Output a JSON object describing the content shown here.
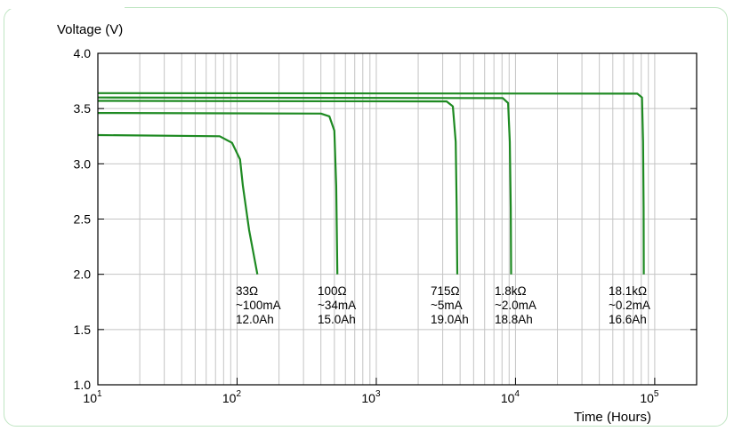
{
  "chart_data": {
    "type": "line",
    "xscale": "log",
    "xlim": [
      10,
      200000
    ],
    "ylim": [
      1.0,
      4.0
    ],
    "xlabel": "Time (Hours)",
    "ylabel": "Voltage (V)",
    "yticks": [
      "1.0",
      "1.5",
      "2.0",
      "2.5",
      "3.0",
      "3.5",
      "4.0"
    ],
    "xticks": [
      {
        "value": 10,
        "base": "10",
        "exp": "1"
      },
      {
        "value": 100,
        "base": "10",
        "exp": "2"
      },
      {
        "value": 1000,
        "base": "10",
        "exp": "3"
      },
      {
        "value": 10000,
        "base": "10",
        "exp": "4"
      },
      {
        "value": 100000,
        "base": "10",
        "exp": "5"
      }
    ],
    "grid": true,
    "line_color": "#1e8a22",
    "series": [
      {
        "points": [
          [
            10,
            3.26
          ],
          [
            75,
            3.25
          ],
          [
            92,
            3.19
          ],
          [
            105,
            3.04
          ],
          [
            110,
            2.8
          ],
          [
            122,
            2.4
          ],
          [
            140,
            2.0
          ]
        ],
        "annotation": [
          "33Ω",
          "~100mA",
          "12.0Ah"
        ]
      },
      {
        "points": [
          [
            10,
            3.46
          ],
          [
            400,
            3.455
          ],
          [
            460,
            3.43
          ],
          [
            500,
            3.3
          ],
          [
            515,
            2.8
          ],
          [
            525,
            2.0
          ]
        ],
        "annotation": [
          "100Ω",
          "~34mA",
          "15.0Ah"
        ]
      },
      {
        "points": [
          [
            10,
            3.57
          ],
          [
            3200,
            3.565
          ],
          [
            3550,
            3.52
          ],
          [
            3720,
            3.2
          ],
          [
            3780,
            2.6
          ],
          [
            3820,
            2.0
          ]
        ],
        "annotation": [
          "715Ω",
          "~5mA",
          "19.0Ah"
        ]
      },
      {
        "points": [
          [
            10,
            3.6
          ],
          [
            8100,
            3.595
          ],
          [
            8850,
            3.55
          ],
          [
            9100,
            3.2
          ],
          [
            9250,
            2.6
          ],
          [
            9300,
            2.0
          ]
        ],
        "annotation": [
          "1.8kΩ",
          "~2.0mA",
          "18.8Ah"
        ]
      },
      {
        "points": [
          [
            10,
            3.64
          ],
          [
            75000,
            3.635
          ],
          [
            81000,
            3.6
          ],
          [
            82500,
            3.2
          ],
          [
            83200,
            2.6
          ],
          [
            83500,
            2.0
          ]
        ],
        "annotation": [
          "18.1kΩ",
          "~0.2mA",
          "16.6Ah"
        ]
      }
    ]
  }
}
